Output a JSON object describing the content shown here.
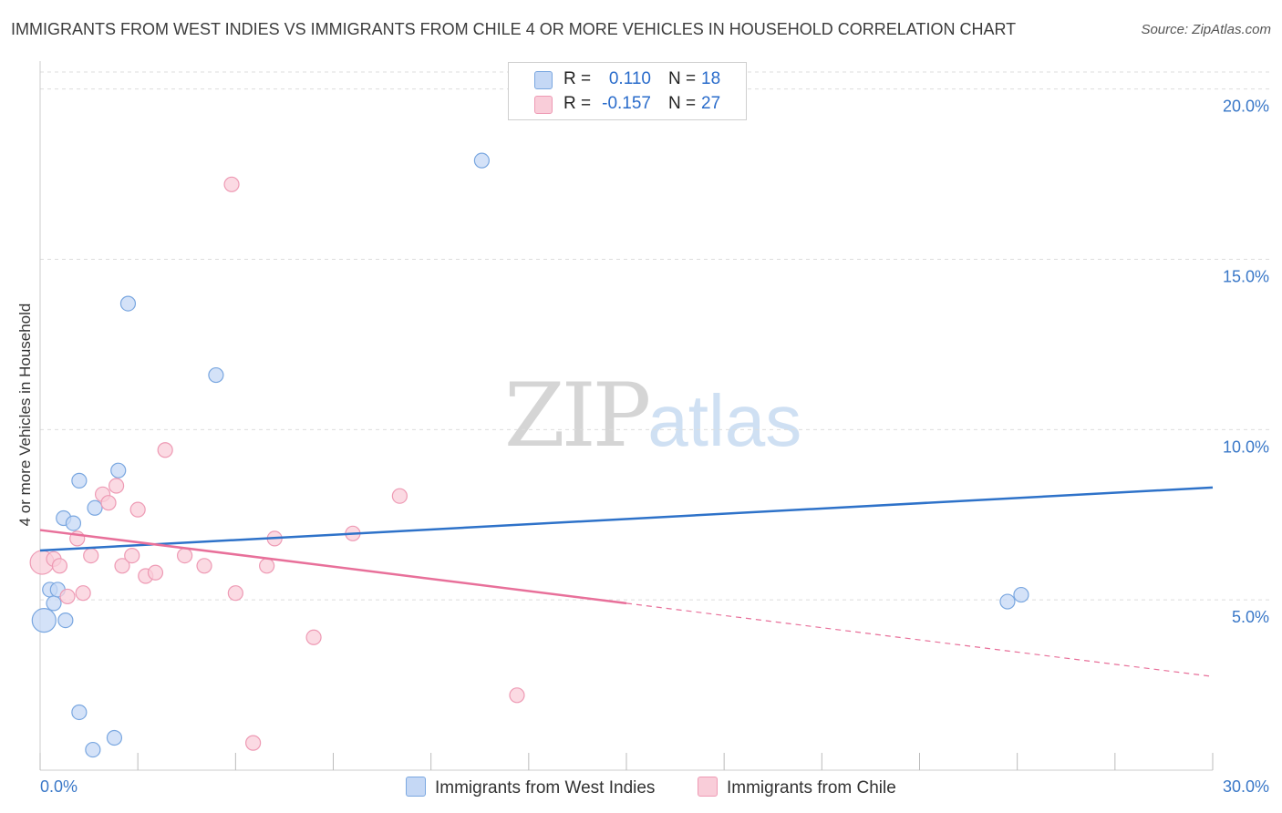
{
  "title": "IMMIGRANTS FROM WEST INDIES VS IMMIGRANTS FROM CHILE 4 OR MORE VEHICLES IN HOUSEHOLD CORRELATION CHART",
  "source": "Source: ZipAtlas.com",
  "watermark": {
    "zip": "ZIP",
    "atlas": "atlas"
  },
  "legend": [
    {
      "r_label": "R =",
      "r_value": "0.110",
      "n_label": "N =",
      "n_value": "18"
    },
    {
      "r_label": "R =",
      "r_value": "-0.157",
      "n_label": "N =",
      "n_value": "27"
    }
  ],
  "colors": {
    "series_a_fill": "#c5d8f5",
    "series_a_stroke": "#7aa7e0",
    "series_a_line": "#2e72c9",
    "series_b_fill": "#f9cdd9",
    "series_b_stroke": "#ee9ab4",
    "series_b_line": "#e8709a",
    "axis_text": "#3a78c8",
    "grid": "#dddddd"
  },
  "chart_data": {
    "type": "scatter",
    "title": "IMMIGRANTS FROM WEST INDIES VS IMMIGRANTS FROM CHILE 4 OR MORE VEHICLES IN HOUSEHOLD CORRELATION CHART",
    "xlabel": "",
    "ylabel": "4 or more Vehicles in Household",
    "xlim": [
      0,
      30
    ],
    "ylim": [
      0,
      20.5
    ],
    "x_tick_labels": [
      "0.0%",
      "30.0%"
    ],
    "y_ticks": [
      5,
      10,
      15,
      20
    ],
    "y_tick_labels": [
      "5.0%",
      "10.0%",
      "15.0%",
      "20.0%"
    ],
    "series": [
      {
        "name": "Immigrants from West Indies",
        "r": 0.11,
        "n": 18,
        "points": [
          {
            "x": 0.1,
            "y": 4.4,
            "big": true
          },
          {
            "x": 0.25,
            "y": 5.3
          },
          {
            "x": 0.35,
            "y": 4.9
          },
          {
            "x": 0.45,
            "y": 5.3
          },
          {
            "x": 0.6,
            "y": 7.4
          },
          {
            "x": 0.65,
            "y": 4.4
          },
          {
            "x": 0.85,
            "y": 7.25
          },
          {
            "x": 1.0,
            "y": 1.7
          },
          {
            "x": 1.0,
            "y": 8.5
          },
          {
            "x": 1.35,
            "y": 0.6
          },
          {
            "x": 1.4,
            "y": 7.7
          },
          {
            "x": 1.9,
            "y": 0.95
          },
          {
            "x": 2.0,
            "y": 8.8
          },
          {
            "x": 2.25,
            "y": 13.7
          },
          {
            "x": 4.5,
            "y": 11.6
          },
          {
            "x": 11.3,
            "y": 17.9
          },
          {
            "x": 24.75,
            "y": 4.95
          },
          {
            "x": 25.1,
            "y": 5.15
          }
        ],
        "trend": {
          "x0": 0,
          "y0": 6.45,
          "x1": 30,
          "y1": 8.3,
          "dashed_from": null
        }
      },
      {
        "name": "Immigrants from Chile",
        "r": -0.157,
        "n": 27,
        "points": [
          {
            "x": 0.05,
            "y": 6.1,
            "big": true
          },
          {
            "x": 0.35,
            "y": 6.2
          },
          {
            "x": 0.5,
            "y": 6.0
          },
          {
            "x": 0.7,
            "y": 5.1
          },
          {
            "x": 0.95,
            "y": 6.8
          },
          {
            "x": 1.1,
            "y": 5.2
          },
          {
            "x": 1.3,
            "y": 6.3
          },
          {
            "x": 1.6,
            "y": 8.1
          },
          {
            "x": 1.75,
            "y": 7.85
          },
          {
            "x": 1.95,
            "y": 8.35
          },
          {
            "x": 2.1,
            "y": 6.0
          },
          {
            "x": 2.35,
            "y": 6.3
          },
          {
            "x": 2.5,
            "y": 7.65
          },
          {
            "x": 2.7,
            "y": 5.7
          },
          {
            "x": 2.95,
            "y": 5.8
          },
          {
            "x": 3.2,
            "y": 9.4
          },
          {
            "x": 3.7,
            "y": 6.3
          },
          {
            "x": 4.2,
            "y": 6.0
          },
          {
            "x": 4.9,
            "y": 17.2
          },
          {
            "x": 5.0,
            "y": 5.2
          },
          {
            "x": 5.45,
            "y": 0.8
          },
          {
            "x": 5.8,
            "y": 6.0
          },
          {
            "x": 6.0,
            "y": 6.8
          },
          {
            "x": 7.0,
            "y": 3.9
          },
          {
            "x": 8.0,
            "y": 6.95
          },
          {
            "x": 9.2,
            "y": 8.05
          },
          {
            "x": 12.2,
            "y": 2.2
          }
        ],
        "trend": {
          "x0": 0,
          "y0": 7.05,
          "x1": 30,
          "y1": 2.75,
          "dashed_from": 15
        }
      }
    ]
  }
}
